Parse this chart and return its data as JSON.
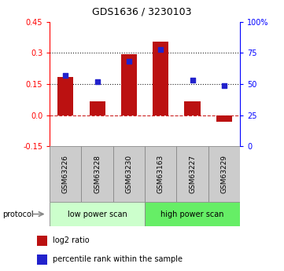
{
  "title": "GDS1636 / 3230103",
  "samples": [
    "GSM63226",
    "GSM63228",
    "GSM63230",
    "GSM63163",
    "GSM63227",
    "GSM63229"
  ],
  "log2_ratio": [
    0.185,
    0.065,
    0.295,
    0.355,
    0.065,
    -0.03
  ],
  "percentile_rank": [
    57,
    52,
    68,
    78,
    53,
    49
  ],
  "ylim_left": [
    -0.15,
    0.45
  ],
  "ylim_right": [
    0,
    100
  ],
  "yticks_left": [
    -0.15,
    0.0,
    0.15,
    0.3,
    0.45
  ],
  "yticks_right": [
    0,
    25,
    50,
    75,
    100
  ],
  "yticklabels_right": [
    "0",
    "25",
    "50",
    "75",
    "100%"
  ],
  "hlines": [
    0.0,
    0.15,
    0.3
  ],
  "hline_styles": [
    "dashed",
    "dotted",
    "dotted"
  ],
  "hline_colors": [
    "#cc2222",
    "#222222",
    "#222222"
  ],
  "bar_color": "#bb1111",
  "dot_color": "#2222cc",
  "bar_width": 0.5,
  "lps_color": "#ccffcc",
  "hps_color": "#66ee66",
  "protocol_label": "protocol",
  "legend_bar_label": "log2 ratio",
  "legend_dot_label": "percentile rank within the sample",
  "bg_color": "#ffffff",
  "plot_bg_color": "#ffffff",
  "label_area_color": "#cccccc",
  "title_fontsize": 9,
  "axis_fontsize": 7,
  "label_fontsize": 6.5,
  "proto_fontsize": 7,
  "legend_fontsize": 7
}
